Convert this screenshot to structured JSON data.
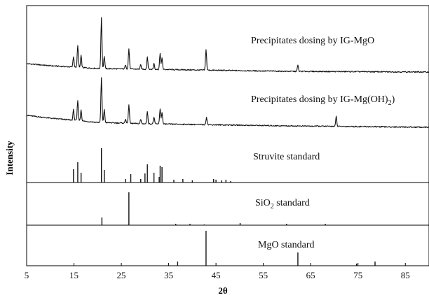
{
  "chart_data": {
    "type": "line",
    "xlabel": "2θ",
    "ylabel": "Intensity",
    "xlim": [
      5,
      90
    ],
    "x_ticks": [
      5,
      15,
      25,
      35,
      45,
      55,
      65,
      75,
      85
    ],
    "series": [
      {
        "name": "Precipitates dosing by IG-MgO",
        "kind": "pattern",
        "baseline": [
          [
            5,
            11
          ],
          [
            10,
            8
          ],
          [
            15,
            6
          ],
          [
            20,
            4
          ],
          [
            30,
            3
          ],
          [
            40,
            2
          ],
          [
            50,
            1
          ],
          [
            60,
            0
          ],
          [
            75,
            -0.5
          ],
          [
            90,
            -1
          ]
        ],
        "peaks": [
          [
            14.9,
            15
          ],
          [
            15.8,
            32
          ],
          [
            16.5,
            17
          ],
          [
            20.8,
            73
          ],
          [
            21.4,
            18
          ],
          [
            25.9,
            6
          ],
          [
            26.6,
            29
          ],
          [
            29.1,
            6
          ],
          [
            30.5,
            18
          ],
          [
            31.9,
            9
          ],
          [
            33.2,
            23
          ],
          [
            33.6,
            16
          ],
          [
            42.9,
            30
          ],
          [
            62.3,
            9
          ]
        ]
      },
      {
        "name": "Precipitates dosing by IG-Mg(OH)2",
        "kind": "pattern",
        "baseline": [
          [
            5,
            17
          ],
          [
            10,
            13
          ],
          [
            15,
            10
          ],
          [
            20,
            7
          ],
          [
            30,
            5
          ],
          [
            40,
            4
          ],
          [
            50,
            3
          ],
          [
            60,
            2
          ],
          [
            75,
            1
          ],
          [
            90,
            0
          ]
        ],
        "peaks": [
          [
            14.9,
            15
          ],
          [
            15.8,
            29
          ],
          [
            16.5,
            16
          ],
          [
            20.8,
            64
          ],
          [
            21.4,
            19
          ],
          [
            25.9,
            6
          ],
          [
            26.6,
            27
          ],
          [
            29.1,
            6
          ],
          [
            30.5,
            18
          ],
          [
            31.9,
            10
          ],
          [
            33.2,
            22
          ],
          [
            33.6,
            17
          ],
          [
            43.0,
            11
          ],
          [
            70.4,
            14
          ]
        ]
      },
      {
        "name": "Struvite standard",
        "kind": "sticks",
        "peaks": [
          [
            14.9,
            19
          ],
          [
            15.8,
            29
          ],
          [
            16.5,
            14
          ],
          [
            20.8,
            49
          ],
          [
            21.4,
            18
          ],
          [
            25.9,
            5
          ],
          [
            27.0,
            12
          ],
          [
            29.1,
            5
          ],
          [
            30.0,
            13
          ],
          [
            30.5,
            26
          ],
          [
            31.9,
            14
          ],
          [
            33.0,
            8
          ],
          [
            33.2,
            24
          ],
          [
            33.6,
            22
          ],
          [
            36.1,
            4
          ],
          [
            38.0,
            5
          ],
          [
            40.0,
            3
          ],
          [
            44.5,
            5
          ],
          [
            45.0,
            4
          ],
          [
            46.2,
            3
          ],
          [
            47.1,
            4
          ],
          [
            48.1,
            2
          ]
        ]
      },
      {
        "name": "SiO2 standard",
        "kind": "sticks",
        "peaks": [
          [
            20.9,
            11
          ],
          [
            26.6,
            47
          ],
          [
            36.5,
            2
          ],
          [
            39.5,
            2
          ],
          [
            42.5,
            1
          ],
          [
            50.1,
            3
          ],
          [
            59.9,
            2
          ],
          [
            68.1,
            2
          ]
        ]
      },
      {
        "name": "MgO standard",
        "kind": "sticks",
        "peaks": [
          [
            36.9,
            6
          ],
          [
            42.9,
            50
          ],
          [
            62.3,
            19
          ],
          [
            74.7,
            3
          ],
          [
            78.6,
            6
          ]
        ]
      }
    ]
  },
  "labels": {
    "series_0": "Precipitates dosing by IG-MgO",
    "series_1_main": "Precipitates dosing by IG-Mg(OH)",
    "series_1_sub": "2",
    "series_2": "Struvite standard",
    "series_3_main": "SiO",
    "series_3_sub": "2",
    "series_3_tail": " standard",
    "series_4": "MgO standard"
  }
}
